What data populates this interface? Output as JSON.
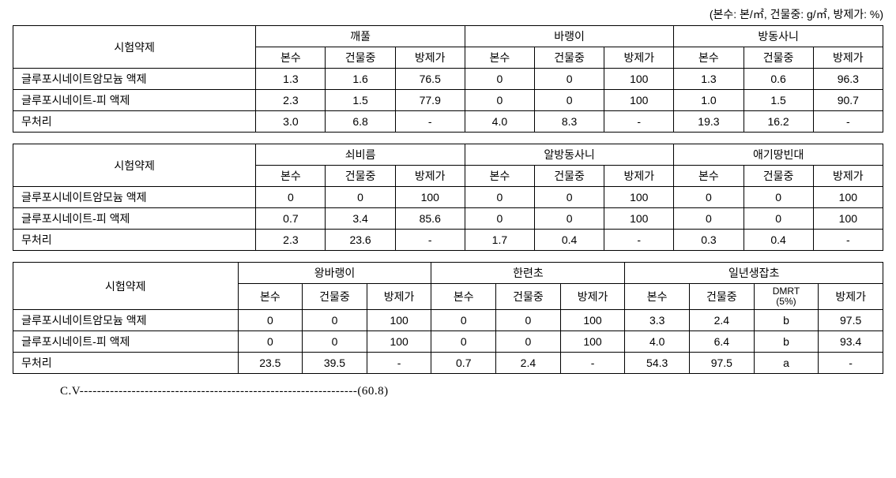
{
  "units_note": "(본수: 본/㎡, 건물중: g/㎡, 방제가: %)",
  "headers": {
    "agent": "시험약제",
    "subcols3": [
      "본수",
      "건물중",
      "방제가"
    ],
    "subcols4": [
      "본수",
      "건물중",
      "DMRT\n(5%)",
      "방제가"
    ]
  },
  "agents": [
    "글루포시네이트암모늄 액제",
    "글루포시네이트-피 액제",
    "무처리"
  ],
  "table1": {
    "weed_groups": [
      "깨풀",
      "바랭이",
      "방동사니"
    ],
    "rows": [
      [
        "1.3",
        "1.6",
        "76.5",
        "0",
        "0",
        "100",
        "1.3",
        "0.6",
        "96.3"
      ],
      [
        "2.3",
        "1.5",
        "77.9",
        "0",
        "0",
        "100",
        "1.0",
        "1.5",
        "90.7"
      ],
      [
        "3.0",
        "6.8",
        "-",
        "4.0",
        "8.3",
        "-",
        "19.3",
        "16.2",
        "-"
      ]
    ]
  },
  "table2": {
    "weed_groups": [
      "쇠비름",
      "알방동사니",
      "애기땅빈대"
    ],
    "rows": [
      [
        "0",
        "0",
        "100",
        "0",
        "0",
        "100",
        "0",
        "0",
        "100"
      ],
      [
        "0.7",
        "3.4",
        "85.6",
        "0",
        "0",
        "100",
        "0",
        "0",
        "100"
      ],
      [
        "2.3",
        "23.6",
        "-",
        "1.7",
        "0.4",
        "-",
        "0.3",
        "0.4",
        "-"
      ]
    ]
  },
  "table3": {
    "weed_groups": [
      "왕바랭이",
      "한련초",
      "일년생잡초"
    ],
    "rows": [
      [
        "0",
        "0",
        "100",
        "0",
        "0",
        "100",
        "3.3",
        "2.4",
        "b",
        "97.5"
      ],
      [
        "0",
        "0",
        "100",
        "0",
        "0",
        "100",
        "4.0",
        "6.4",
        "b",
        "93.4"
      ],
      [
        "23.5",
        "39.5",
        "-",
        "0.7",
        "2.4",
        "-",
        "54.3",
        "97.5",
        "a",
        "-"
      ]
    ]
  },
  "cv_text": "C.V----------------------------------------------------------------(60.8)"
}
